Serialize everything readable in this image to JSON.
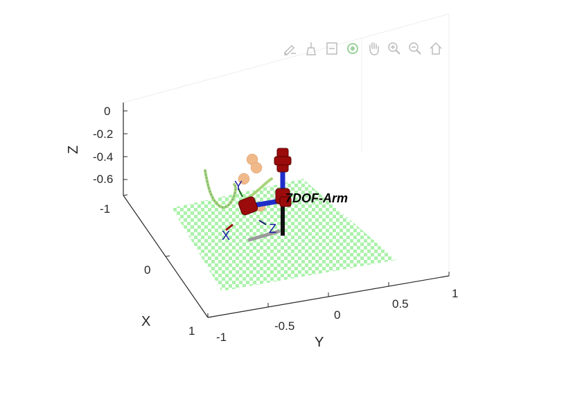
{
  "toolbar": {
    "buttons": [
      {
        "name": "edit-plot-icon"
      },
      {
        "name": "brush-icon"
      },
      {
        "name": "data-tips-icon"
      },
      {
        "name": "rotate-3d-icon"
      },
      {
        "name": "pan-hand-icon"
      },
      {
        "name": "zoom-in-icon"
      },
      {
        "name": "zoom-out-icon"
      },
      {
        "name": "home-icon"
      }
    ]
  },
  "axes": {
    "z_label": "Z",
    "z_ticks": [
      "0",
      "-0.2",
      "-0.4",
      "-0.6"
    ],
    "x_label": "X",
    "x_ticks": [
      "-1",
      "0",
      "1"
    ],
    "y_label": "Y",
    "y_ticks": [
      "-1",
      "-0.5",
      "0",
      "0.5",
      "1"
    ]
  },
  "robot": {
    "name_label": "7DOF-Arm",
    "frame_labels": {
      "x": "X",
      "y": "Y",
      "z": "Z"
    }
  },
  "colors": {
    "floor_a": "#9cf09c",
    "floor_b": "#ffffff",
    "joint": "#9b0b0b",
    "link_blue": "#1f2ec8",
    "link_black": "#111111",
    "path": "#a8d478",
    "target": "#f0b98a",
    "axis": "#262626",
    "grid": "#ececec"
  }
}
